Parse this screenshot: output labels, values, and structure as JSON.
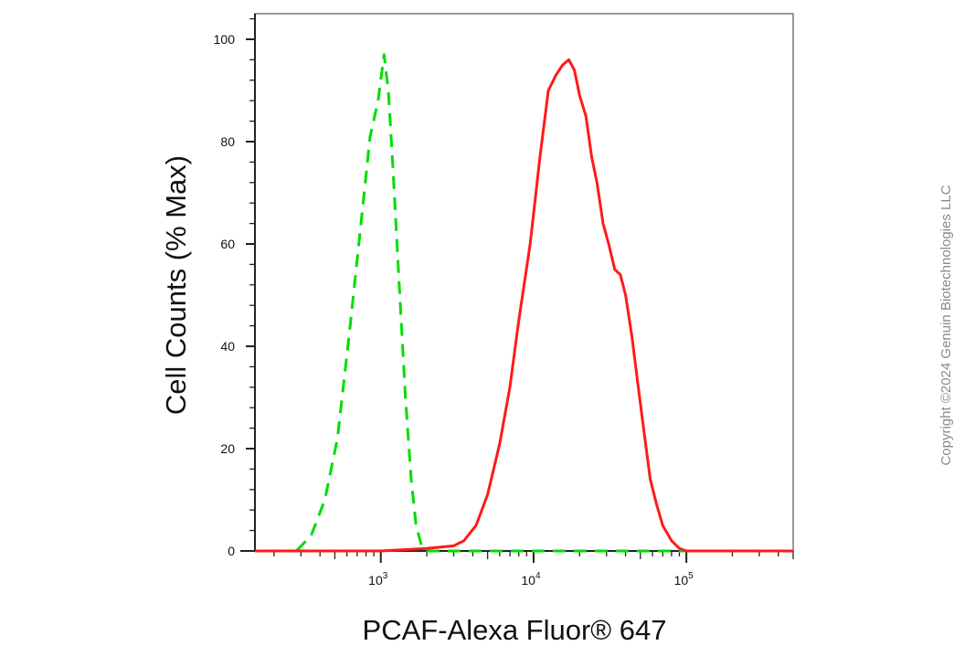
{
  "chart_data": {
    "type": "line",
    "xlabel": "PCAF-Alexa Fluor® 647",
    "ylabel": "Cell Counts (% Max)",
    "xscale": "log",
    "xlim": [
      150,
      500000
    ],
    "ylim": [
      0,
      105
    ],
    "yticks": [
      0,
      20,
      40,
      60,
      80,
      100
    ],
    "xticks": [
      {
        "value": 1000,
        "base": "10",
        "exp": "3"
      },
      {
        "value": 10000,
        "base": "10",
        "exp": "4"
      },
      {
        "value": 100000,
        "base": "10",
        "exp": "5"
      }
    ],
    "grid": false,
    "series": [
      {
        "color": "#00dd00",
        "style": "dashed",
        "x": [
          150,
          200,
          280,
          350,
          430,
          520,
          620,
          730,
          850,
          960,
          1050,
          1120,
          1200,
          1320,
          1450,
          1580,
          1700,
          1850,
          2000,
          3000,
          10000,
          100000,
          500000
        ],
        "y": [
          0,
          0,
          0,
          3,
          10,
          22,
          42,
          62,
          81,
          88,
          97,
          90,
          75,
          52,
          30,
          14,
          5,
          1,
          0,
          0,
          0,
          0,
          0
        ]
      },
      {
        "color": "#ff1a1a",
        "style": "solid",
        "x": [
          150,
          1000,
          2000,
          3000,
          3500,
          4200,
          5000,
          6000,
          7000,
          8000,
          9500,
          11000,
          12500,
          14000,
          15500,
          17000,
          18500,
          20000,
          22000,
          24000,
          26000,
          28500,
          31000,
          34000,
          37000,
          40000,
          44000,
          48000,
          53000,
          58000,
          64000,
          70000,
          80000,
          90000,
          100000,
          110000,
          120000,
          500000
        ],
        "y": [
          0,
          0,
          0.5,
          1,
          2,
          5,
          11,
          21,
          32,
          45,
          60,
          77,
          90,
          93,
          95,
          96,
          94,
          89,
          85,
          77,
          72,
          64,
          60,
          55,
          54,
          50,
          42,
          33,
          23,
          14,
          9,
          5,
          2,
          0.5,
          0,
          0,
          0,
          0
        ]
      }
    ]
  },
  "watermark": "Copyright ©2024 Genuin Biotechnologies LLC"
}
